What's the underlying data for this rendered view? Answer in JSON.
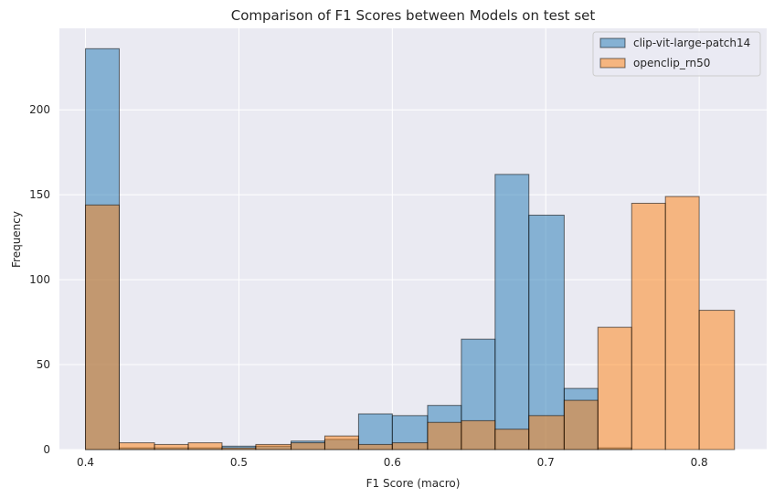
{
  "chart_data": {
    "type": "histogram",
    "title": "Comparison of F1 Scores between Models on test set",
    "xlabel": "F1 Score (macro)",
    "ylabel": "Frequency",
    "xlim": [
      0.383,
      0.844
    ],
    "ylim": [
      0,
      248
    ],
    "xticks": [
      0.4,
      0.5,
      0.6,
      0.7,
      0.8
    ],
    "xtick_labels": [
      "0.4",
      "0.5",
      "0.6",
      "0.7",
      "0.8"
    ],
    "yticks": [
      0,
      50,
      100,
      150,
      200
    ],
    "ytick_labels": [
      "0",
      "50",
      "100",
      "150",
      "200"
    ],
    "grid": true,
    "legend_position": "top-right",
    "series": [
      {
        "name": "clip-vit-large-patch14",
        "color": "#1f77b4",
        "bins": [
          {
            "x0": 0.4,
            "x1": 0.422,
            "value": 236
          },
          {
            "x0": 0.422,
            "x1": 0.445,
            "value": 1
          },
          {
            "x0": 0.445,
            "x1": 0.467,
            "value": 1
          },
          {
            "x0": 0.467,
            "x1": 0.489,
            "value": 1
          },
          {
            "x0": 0.489,
            "x1": 0.511,
            "value": 2
          },
          {
            "x0": 0.511,
            "x1": 0.534,
            "value": 2
          },
          {
            "x0": 0.534,
            "x1": 0.556,
            "value": 5
          },
          {
            "x0": 0.556,
            "x1": 0.578,
            "value": 6
          },
          {
            "x0": 0.578,
            "x1": 0.6,
            "value": 21
          },
          {
            "x0": 0.6,
            "x1": 0.623,
            "value": 20
          },
          {
            "x0": 0.623,
            "x1": 0.645,
            "value": 26
          },
          {
            "x0": 0.645,
            "x1": 0.667,
            "value": 65
          },
          {
            "x0": 0.667,
            "x1": 0.689,
            "value": 162
          },
          {
            "x0": 0.689,
            "x1": 0.712,
            "value": 138
          },
          {
            "x0": 0.712,
            "x1": 0.734,
            "value": 36
          },
          {
            "x0": 0.734,
            "x1": 0.756,
            "value": 1
          }
        ]
      },
      {
        "name": "openclip_rn50",
        "color": "#ff7f0e",
        "bins": [
          {
            "x0": 0.4,
            "x1": 0.422,
            "value": 144
          },
          {
            "x0": 0.422,
            "x1": 0.445,
            "value": 4
          },
          {
            "x0": 0.445,
            "x1": 0.467,
            "value": 3
          },
          {
            "x0": 0.467,
            "x1": 0.489,
            "value": 4
          },
          {
            "x0": 0.489,
            "x1": 0.511,
            "value": 1
          },
          {
            "x0": 0.511,
            "x1": 0.534,
            "value": 3
          },
          {
            "x0": 0.534,
            "x1": 0.556,
            "value": 4
          },
          {
            "x0": 0.556,
            "x1": 0.578,
            "value": 8
          },
          {
            "x0": 0.578,
            "x1": 0.6,
            "value": 3
          },
          {
            "x0": 0.6,
            "x1": 0.623,
            "value": 4
          },
          {
            "x0": 0.623,
            "x1": 0.645,
            "value": 16
          },
          {
            "x0": 0.645,
            "x1": 0.667,
            "value": 17
          },
          {
            "x0": 0.667,
            "x1": 0.689,
            "value": 12
          },
          {
            "x0": 0.689,
            "x1": 0.712,
            "value": 20
          },
          {
            "x0": 0.712,
            "x1": 0.734,
            "value": 29
          },
          {
            "x0": 0.734,
            "x1": 0.756,
            "value": 72
          },
          {
            "x0": 0.756,
            "x1": 0.778,
            "value": 145
          },
          {
            "x0": 0.778,
            "x1": 0.8,
            "value": 149
          },
          {
            "x0": 0.8,
            "x1": 0.823,
            "value": 82
          }
        ]
      }
    ]
  }
}
